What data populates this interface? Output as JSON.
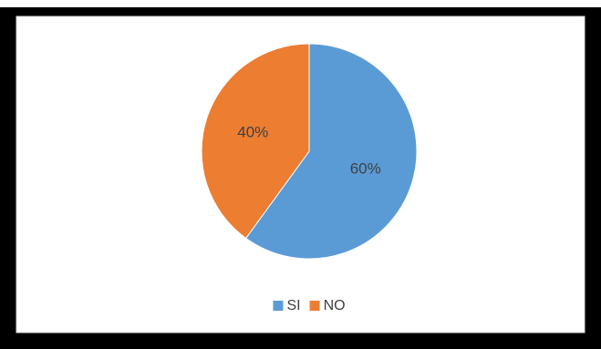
{
  "chart_data": {
    "type": "pie",
    "categories": [
      "SI",
      "NO"
    ],
    "values": [
      60,
      40
    ],
    "value_labels": [
      "60%",
      "40%"
    ],
    "colors": [
      "#5b9bd5",
      "#ed7d31"
    ],
    "legend": "bottom"
  }
}
